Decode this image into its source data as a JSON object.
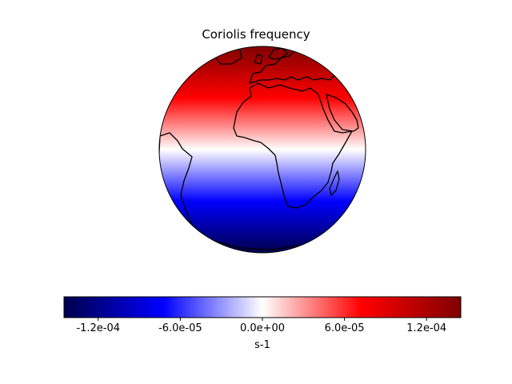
{
  "map": {
    "title": "Coriolis frequency",
    "projection": "orthographic",
    "central_longitude": 10,
    "central_latitude": 0,
    "colormap": "seismic",
    "field": "Coriolis parameter f = 2Ω sin(latitude)",
    "vmin": -0.000145,
    "vmax": 0.000145,
    "coastline_color": "#000000"
  },
  "colorbar": {
    "label": "s-1",
    "orientation": "horizontal",
    "ticks": [
      {
        "value": -0.00012,
        "label": "-1.2e-04"
      },
      {
        "value": -6e-05,
        "label": "-6.0e-05"
      },
      {
        "value": 0.0,
        "label": "0.0e+00"
      },
      {
        "value": 6e-05,
        "label": "6.0e-05"
      },
      {
        "value": 0.00012,
        "label": "1.2e-04"
      }
    ],
    "colors": {
      "min": "#00004c",
      "low": "#0000ff",
      "mid": "#ffffff",
      "high": "#ff0000",
      "max": "#800000"
    }
  }
}
